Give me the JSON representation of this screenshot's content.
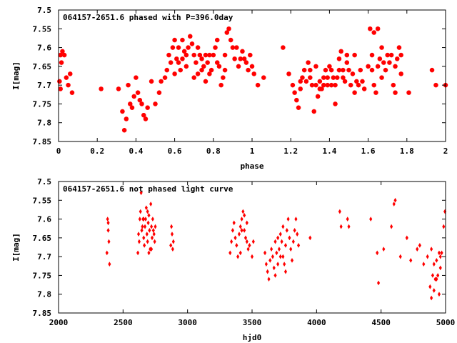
{
  "colors": {
    "points": "#ff0000",
    "frame": "#000000",
    "background": "#ffffff"
  },
  "chart_data": [
    {
      "type": "scatter",
      "title": "064157-2651.6 phased with P=396.0day",
      "xlabel": "phase",
      "ylabel": "I[mag]",
      "xlim": [
        0,
        2
      ],
      "ylim": [
        7.85,
        7.5
      ],
      "y_inverted": true,
      "grid": false,
      "x_ticks": [
        "0",
        "0.2",
        "0.4",
        "0.6",
        "0.8",
        "1",
        "1.2",
        "1.4",
        "1.6",
        "1.8",
        "2"
      ],
      "x_tick_values": [
        0,
        0.2,
        0.4,
        0.6,
        0.8,
        1.0,
        1.2,
        1.4,
        1.6,
        1.8,
        2.0
      ],
      "y_ticks": [
        "7.5",
        "7.55",
        "7.6",
        "7.65",
        "7.7",
        "7.75",
        "7.8",
        "7.85"
      ],
      "y_tick_values": [
        7.5,
        7.55,
        7.6,
        7.65,
        7.7,
        7.75,
        7.8,
        7.85
      ],
      "marker": "star",
      "points": [
        [
          0.01,
          7.62
        ],
        [
          0.015,
          7.64
        ],
        [
          0.02,
          7.61
        ],
        [
          0.03,
          7.62
        ],
        [
          0.04,
          7.68
        ],
        [
          0.05,
          7.7
        ],
        [
          0.06,
          7.67
        ],
        [
          0.07,
          7.72
        ],
        [
          0.01,
          7.71
        ],
        [
          0.005,
          7.69
        ],
        [
          0.22,
          7.71
        ],
        [
          0.31,
          7.71
        ],
        [
          0.33,
          7.77
        ],
        [
          0.34,
          7.82
        ],
        [
          0.35,
          7.79
        ],
        [
          0.36,
          7.7
        ],
        [
          0.37,
          7.75
        ],
        [
          0.38,
          7.76
        ],
        [
          0.39,
          7.73
        ],
        [
          0.4,
          7.68
        ],
        [
          0.41,
          7.72
        ],
        [
          0.42,
          7.74
        ],
        [
          0.43,
          7.75
        ],
        [
          0.44,
          7.78
        ],
        [
          0.45,
          7.79
        ],
        [
          0.46,
          7.76
        ],
        [
          0.48,
          7.69
        ],
        [
          0.5,
          7.75
        ],
        [
          0.52,
          7.72
        ],
        [
          0.53,
          7.69
        ],
        [
          0.55,
          7.68
        ],
        [
          0.56,
          7.66
        ],
        [
          0.57,
          7.62
        ],
        [
          0.58,
          7.64
        ],
        [
          0.59,
          7.6
        ],
        [
          0.6,
          7.58
        ],
        [
          0.61,
          7.63
        ],
        [
          0.62,
          7.64
        ],
        [
          0.63,
          7.66
        ],
        [
          0.64,
          7.63
        ],
        [
          0.65,
          7.61
        ],
        [
          0.66,
          7.62
        ],
        [
          0.67,
          7.6
        ],
        [
          0.68,
          7.57
        ],
        [
          0.69,
          7.59
        ],
        [
          0.7,
          7.62
        ],
        [
          0.71,
          7.64
        ],
        [
          0.72,
          7.6
        ],
        [
          0.73,
          7.62
        ],
        [
          0.74,
          7.63
        ],
        [
          0.75,
          7.65
        ],
        [
          0.76,
          7.62
        ],
        [
          0.77,
          7.64
        ],
        [
          0.78,
          7.67
        ],
        [
          0.79,
          7.66
        ],
        [
          0.8,
          7.62
        ],
        [
          0.81,
          7.6
        ],
        [
          0.82,
          7.58
        ],
        [
          0.83,
          7.65
        ],
        [
          0.84,
          7.7
        ],
        [
          0.85,
          7.68
        ],
        [
          0.86,
          7.62
        ],
        [
          0.87,
          7.56
        ],
        [
          0.88,
          7.55
        ],
        [
          0.89,
          7.58
        ],
        [
          0.9,
          7.6
        ],
        [
          0.91,
          7.63
        ],
        [
          0.92,
          7.6
        ],
        [
          0.93,
          7.65
        ],
        [
          0.94,
          7.63
        ],
        [
          0.95,
          7.61
        ],
        [
          0.96,
          7.63
        ],
        [
          0.97,
          7.64
        ],
        [
          0.98,
          7.66
        ],
        [
          0.99,
          7.62
        ],
        [
          1.0,
          7.65
        ],
        [
          1.01,
          7.67
        ],
        [
          1.03,
          7.7
        ],
        [
          1.06,
          7.68
        ],
        [
          0.62,
          7.6
        ],
        [
          0.66,
          7.65
        ],
        [
          0.7,
          7.68
        ],
        [
          0.74,
          7.66
        ],
        [
          0.78,
          7.62
        ],
        [
          0.82,
          7.64
        ],
        [
          0.86,
          7.66
        ],
        [
          0.72,
          7.67
        ],
        [
          0.76,
          7.69
        ],
        [
          0.6,
          7.67
        ],
        [
          0.64,
          7.58
        ],
        [
          1.16,
          7.6
        ],
        [
          1.19,
          7.67
        ],
        [
          1.21,
          7.7
        ],
        [
          1.22,
          7.72
        ],
        [
          1.23,
          7.74
        ],
        [
          1.24,
          7.76
        ],
        [
          1.25,
          7.71
        ],
        [
          1.26,
          7.68
        ],
        [
          1.27,
          7.66
        ],
        [
          1.28,
          7.69
        ],
        [
          1.29,
          7.64
        ],
        [
          1.3,
          7.66
        ],
        [
          1.31,
          7.7
        ],
        [
          1.32,
          7.77
        ],
        [
          1.33,
          7.7
        ],
        [
          1.34,
          7.73
        ],
        [
          1.35,
          7.69
        ],
        [
          1.36,
          7.71
        ],
        [
          1.37,
          7.7
        ],
        [
          1.38,
          7.66
        ],
        [
          1.39,
          7.68
        ],
        [
          1.4,
          7.65
        ],
        [
          1.41,
          7.7
        ],
        [
          1.42,
          7.68
        ],
        [
          1.43,
          7.75
        ],
        [
          1.44,
          7.68
        ],
        [
          1.45,
          7.63
        ],
        [
          1.46,
          7.61
        ],
        [
          1.47,
          7.66
        ],
        [
          1.48,
          7.69
        ],
        [
          1.49,
          7.64
        ],
        [
          1.5,
          7.66
        ],
        [
          1.51,
          7.7
        ],
        [
          1.52,
          7.67
        ],
        [
          1.53,
          7.72
        ],
        [
          1.54,
          7.69
        ],
        [
          1.55,
          7.7
        ],
        [
          1.56,
          7.66
        ],
        [
          1.57,
          7.69
        ],
        [
          1.58,
          7.71
        ],
        [
          1.6,
          7.65
        ],
        [
          1.62,
          7.66
        ],
        [
          1.63,
          7.7
        ],
        [
          1.64,
          7.72
        ],
        [
          1.65,
          7.65
        ],
        [
          1.66,
          7.63
        ],
        [
          1.67,
          7.68
        ],
        [
          1.68,
          7.64
        ],
        [
          1.69,
          7.66
        ],
        [
          1.7,
          7.62
        ],
        [
          1.71,
          7.64
        ],
        [
          1.73,
          7.7
        ],
        [
          1.74,
          7.72
        ],
        [
          1.75,
          7.63
        ],
        [
          1.76,
          7.6
        ],
        [
          1.77,
          7.67
        ],
        [
          1.81,
          7.72
        ],
        [
          1.93,
          7.66
        ],
        [
          1.95,
          7.7
        ],
        [
          2.0,
          7.7
        ],
        [
          1.61,
          7.55
        ],
        [
          1.63,
          7.56
        ],
        [
          1.65,
          7.55
        ],
        [
          1.72,
          7.62
        ],
        [
          1.74,
          7.65
        ],
        [
          1.77,
          7.62
        ],
        [
          1.67,
          7.6
        ],
        [
          1.62,
          7.62
        ],
        [
          1.53,
          7.62
        ],
        [
          1.49,
          7.62
        ],
        [
          1.41,
          7.66
        ],
        [
          1.45,
          7.66
        ],
        [
          1.37,
          7.68
        ],
        [
          1.33,
          7.65
        ],
        [
          1.25,
          7.69
        ],
        [
          1.3,
          7.68
        ],
        [
          1.35,
          7.71
        ],
        [
          1.39,
          7.7
        ],
        [
          1.43,
          7.7
        ],
        [
          1.47,
          7.68
        ]
      ]
    },
    {
      "type": "scatter",
      "title": "064157-2651.6 not phased light curve",
      "xlabel": "hjd0",
      "ylabel": "I[mag]",
      "xlim": [
        2000,
        5000
      ],
      "ylim": [
        7.85,
        7.5
      ],
      "y_inverted": true,
      "grid": false,
      "x_ticks": [
        "2000",
        "2500",
        "3000",
        "3500",
        "4000",
        "4500",
        "5000"
      ],
      "x_tick_values": [
        2000,
        2500,
        3000,
        3500,
        4000,
        4500,
        5000
      ],
      "y_ticks": [
        "7.5",
        "7.55",
        "7.6",
        "7.65",
        "7.7",
        "7.75",
        "7.8",
        "7.85"
      ],
      "y_tick_values": [
        7.5,
        7.55,
        7.6,
        7.65,
        7.7,
        7.75,
        7.8,
        7.85
      ],
      "marker": "diamond",
      "points": [
        [
          2375,
          7.69
        ],
        [
          2380,
          7.6
        ],
        [
          2385,
          7.63
        ],
        [
          2390,
          7.66
        ],
        [
          2395,
          7.72
        ],
        [
          2385,
          7.61
        ],
        [
          2615,
          7.69
        ],
        [
          2620,
          7.64
        ],
        [
          2625,
          7.66
        ],
        [
          2630,
          7.6
        ],
        [
          2635,
          7.58
        ],
        [
          2640,
          7.53
        ],
        [
          2645,
          7.63
        ],
        [
          2650,
          7.62
        ],
        [
          2655,
          7.6
        ],
        [
          2660,
          7.65
        ],
        [
          2665,
          7.67
        ],
        [
          2670,
          7.62
        ],
        [
          2675,
          7.6
        ],
        [
          2680,
          7.57
        ],
        [
          2685,
          7.64
        ],
        [
          2690,
          7.66
        ],
        [
          2695,
          7.61
        ],
        [
          2700,
          7.59
        ],
        [
          2705,
          7.63
        ],
        [
          2710,
          7.68
        ],
        [
          2715,
          7.56
        ],
        [
          2720,
          7.62
        ],
        [
          2725,
          7.65
        ],
        [
          2730,
          7.6
        ],
        [
          2735,
          7.63
        ],
        [
          2740,
          7.64
        ],
        [
          2745,
          7.66
        ],
        [
          2750,
          7.62
        ],
        [
          2700,
          7.69
        ],
        [
          2720,
          7.68
        ],
        [
          2690,
          7.58
        ],
        [
          2660,
          7.6
        ],
        [
          2870,
          7.67
        ],
        [
          2875,
          7.62
        ],
        [
          2880,
          7.64
        ],
        [
          2885,
          7.68
        ],
        [
          2890,
          7.66
        ],
        [
          3330,
          7.69
        ],
        [
          3340,
          7.66
        ],
        [
          3350,
          7.63
        ],
        [
          3360,
          7.61
        ],
        [
          3370,
          7.65
        ],
        [
          3380,
          7.67
        ],
        [
          3390,
          7.7
        ],
        [
          3400,
          7.64
        ],
        [
          3410,
          7.62
        ],
        [
          3420,
          7.6
        ],
        [
          3430,
          7.58
        ],
        [
          3440,
          7.63
        ],
        [
          3450,
          7.65
        ],
        [
          3460,
          7.66
        ],
        [
          3470,
          7.68
        ],
        [
          3480,
          7.67
        ],
        [
          3410,
          7.69
        ],
        [
          3420,
          7.63
        ],
        [
          3440,
          7.59
        ],
        [
          3460,
          7.61
        ],
        [
          3500,
          7.7
        ],
        [
          3510,
          7.66
        ],
        [
          3600,
          7.69
        ],
        [
          3610,
          7.72
        ],
        [
          3620,
          7.74
        ],
        [
          3630,
          7.76
        ],
        [
          3640,
          7.71
        ],
        [
          3650,
          7.68
        ],
        [
          3660,
          7.7
        ],
        [
          3670,
          7.73
        ],
        [
          3680,
          7.66
        ],
        [
          3690,
          7.69
        ],
        [
          3700,
          7.72
        ],
        [
          3710,
          7.68
        ],
        [
          3720,
          7.64
        ],
        [
          3730,
          7.66
        ],
        [
          3740,
          7.7
        ],
        [
          3750,
          7.72
        ],
        [
          3760,
          7.67
        ],
        [
          3770,
          7.63
        ],
        [
          3780,
          7.6
        ],
        [
          3790,
          7.65
        ],
        [
          3800,
          7.68
        ],
        [
          3810,
          7.71
        ],
        [
          3820,
          7.66
        ],
        [
          3830,
          7.63
        ],
        [
          3840,
          7.6
        ],
        [
          3850,
          7.64
        ],
        [
          3860,
          7.67
        ],
        [
          3740,
          7.62
        ],
        [
          3700,
          7.65
        ],
        [
          3720,
          7.7
        ],
        [
          3760,
          7.74
        ],
        [
          3680,
          7.75
        ],
        [
          3950,
          7.65
        ],
        [
          4180,
          7.58
        ],
        [
          4190,
          7.62
        ],
        [
          4240,
          7.6
        ],
        [
          4250,
          7.62
        ],
        [
          4420,
          7.6
        ],
        [
          4470,
          7.69
        ],
        [
          4480,
          7.77
        ],
        [
          4520,
          7.68
        ],
        [
          4580,
          7.62
        ],
        [
          4600,
          7.56
        ],
        [
          4610,
          7.55
        ],
        [
          4650,
          7.7
        ],
        [
          4700,
          7.65
        ],
        [
          4730,
          7.71
        ],
        [
          4780,
          7.68
        ],
        [
          4800,
          7.67
        ],
        [
          4830,
          7.72
        ],
        [
          4860,
          7.7
        ],
        [
          4880,
          7.78
        ],
        [
          4890,
          7.81
        ],
        [
          4900,
          7.75
        ],
        [
          4910,
          7.79
        ],
        [
          4920,
          7.76
        ],
        [
          4930,
          7.71
        ],
        [
          4940,
          7.75
        ],
        [
          4950,
          7.8
        ],
        [
          4960,
          7.73
        ],
        [
          4970,
          7.69
        ],
        [
          4985,
          7.62
        ],
        [
          4995,
          7.58
        ],
        [
          4890,
          7.68
        ],
        [
          4910,
          7.72
        ],
        [
          4930,
          7.76
        ],
        [
          4950,
          7.69
        ],
        [
          4960,
          7.7
        ]
      ]
    }
  ]
}
